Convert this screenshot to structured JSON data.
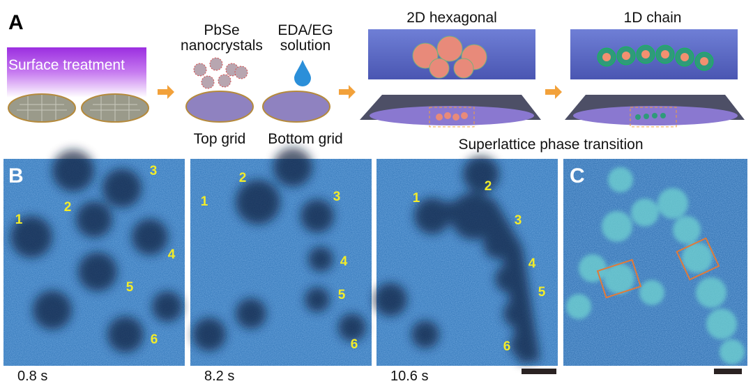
{
  "panel_a": {
    "letter": "A",
    "surface_treatment": "Surface treatment",
    "nanocrystals_label": [
      "PbSe",
      "nanocrystals"
    ],
    "solution_label": [
      "EDA/EG",
      "solution"
    ],
    "hexagonal_label": "2D hexagonal",
    "chain_label": "1D chain",
    "top_grid": "Top grid",
    "bottom_grid": "Bottom grid",
    "transition_label": "Superlattice phase transition"
  },
  "panel_b": {
    "letter": "B",
    "frames": [
      {
        "time": "0.8 s",
        "particles": [
          "1",
          "2",
          "3",
          "4",
          "5",
          "6"
        ]
      },
      {
        "time": "8.2 s",
        "particles": [
          "1",
          "2",
          "3",
          "4",
          "5",
          "6"
        ]
      },
      {
        "time": "10.6 s",
        "particles": [
          "1",
          "2",
          "3",
          "4",
          "5",
          "6"
        ]
      }
    ]
  },
  "panel_c": {
    "letter": "C"
  }
}
